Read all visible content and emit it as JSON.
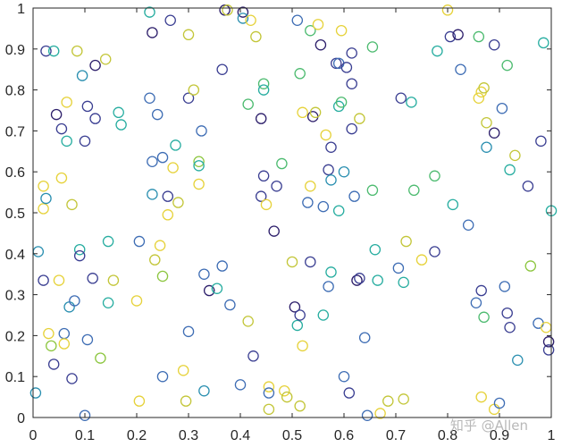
{
  "watermark": "知乎 @Allen",
  "chart_data": {
    "type": "scatter",
    "marker": "open-circle",
    "grid": false,
    "legend": "none",
    "colormap": "viridis",
    "xlim": [
      0,
      1
    ],
    "ylim": [
      0,
      1
    ],
    "x_ticks": [
      0,
      0.1,
      0.2,
      0.3,
      0.4,
      0.5,
      0.6,
      0.7,
      0.8,
      0.9,
      1
    ],
    "x_tick_labels": [
      "0",
      "0.1",
      "0.2",
      "0.3",
      "0.4",
      "0.5",
      "0.6",
      "0.7",
      "0.8",
      "0.9",
      "1"
    ],
    "y_ticks": [
      0,
      0.1,
      0.2,
      0.3,
      0.4,
      0.5,
      0.6,
      0.7,
      0.8,
      0.9,
      1
    ],
    "y_tick_labels": [
      "0",
      "0.1",
      "0.2",
      "0.3",
      "0.4",
      "0.5",
      "0.6",
      "0.7",
      "0.8",
      "0.9",
      "1"
    ],
    "colors": {
      "dark_purple": "#2d1f6b",
      "indigo": "#3b3f92",
      "blue": "#3e6db4",
      "teal": "#2a8fb0",
      "cyan": "#27ada0",
      "green": "#4dbb70",
      "lime": "#8cc63f",
      "yellow_green": "#c3c639",
      "yellow": "#e6d23a"
    },
    "points": [
      {
        "x": 0.005,
        "y": 0.06,
        "c": "teal"
      },
      {
        "x": 0.01,
        "y": 0.405,
        "c": "teal"
      },
      {
        "x": 0.02,
        "y": 0.51,
        "c": "yellow"
      },
      {
        "x": 0.02,
        "y": 0.565,
        "c": "yellow"
      },
      {
        "x": 0.02,
        "y": 0.335,
        "c": "indigo"
      },
      {
        "x": 0.025,
        "y": 0.895,
        "c": "indigo"
      },
      {
        "x": 0.025,
        "y": 0.535,
        "c": "teal"
      },
      {
        "x": 0.03,
        "y": 0.205,
        "c": "yellow"
      },
      {
        "x": 0.035,
        "y": 0.175,
        "c": "lime"
      },
      {
        "x": 0.04,
        "y": 0.13,
        "c": "indigo"
      },
      {
        "x": 0.04,
        "y": 0.895,
        "c": "cyan"
      },
      {
        "x": 0.045,
        "y": 0.74,
        "c": "dark_purple"
      },
      {
        "x": 0.05,
        "y": 0.335,
        "c": "yellow"
      },
      {
        "x": 0.055,
        "y": 0.585,
        "c": "yellow"
      },
      {
        "x": 0.055,
        "y": 0.705,
        "c": "indigo"
      },
      {
        "x": 0.06,
        "y": 0.205,
        "c": "blue"
      },
      {
        "x": 0.06,
        "y": 0.18,
        "c": "yellow"
      },
      {
        "x": 0.065,
        "y": 0.675,
        "c": "cyan"
      },
      {
        "x": 0.065,
        "y": 0.77,
        "c": "yellow"
      },
      {
        "x": 0.07,
        "y": 0.27,
        "c": "teal"
      },
      {
        "x": 0.075,
        "y": 0.52,
        "c": "yellow_green"
      },
      {
        "x": 0.075,
        "y": 0.095,
        "c": "indigo"
      },
      {
        "x": 0.08,
        "y": 0.285,
        "c": "blue"
      },
      {
        "x": 0.085,
        "y": 0.895,
        "c": "yellow_green"
      },
      {
        "x": 0.09,
        "y": 0.41,
        "c": "cyan"
      },
      {
        "x": 0.09,
        "y": 0.395,
        "c": "indigo"
      },
      {
        "x": 0.095,
        "y": 0.835,
        "c": "teal"
      },
      {
        "x": 0.1,
        "y": 0.675,
        "c": "indigo"
      },
      {
        "x": 0.1,
        "y": 0.005,
        "c": "blue"
      },
      {
        "x": 0.105,
        "y": 0.76,
        "c": "indigo"
      },
      {
        "x": 0.105,
        "y": 0.19,
        "c": "blue"
      },
      {
        "x": 0.115,
        "y": 0.34,
        "c": "indigo"
      },
      {
        "x": 0.12,
        "y": 0.86,
        "c": "dark_purple"
      },
      {
        "x": 0.12,
        "y": 0.73,
        "c": "indigo"
      },
      {
        "x": 0.13,
        "y": 0.145,
        "c": "lime"
      },
      {
        "x": 0.14,
        "y": 0.875,
        "c": "yellow_green"
      },
      {
        "x": 0.145,
        "y": 0.28,
        "c": "cyan"
      },
      {
        "x": 0.145,
        "y": 0.43,
        "c": "cyan"
      },
      {
        "x": 0.155,
        "y": 0.335,
        "c": "yellow_green"
      },
      {
        "x": 0.165,
        "y": 0.745,
        "c": "cyan"
      },
      {
        "x": 0.17,
        "y": 0.715,
        "c": "cyan"
      },
      {
        "x": 0.2,
        "y": 0.285,
        "c": "yellow"
      },
      {
        "x": 0.205,
        "y": 0.43,
        "c": "blue"
      },
      {
        "x": 0.205,
        "y": 0.04,
        "c": "yellow"
      },
      {
        "x": 0.225,
        "y": 0.99,
        "c": "cyan"
      },
      {
        "x": 0.225,
        "y": 0.78,
        "c": "blue"
      },
      {
        "x": 0.23,
        "y": 0.545,
        "c": "teal"
      },
      {
        "x": 0.23,
        "y": 0.625,
        "c": "blue"
      },
      {
        "x": 0.23,
        "y": 0.94,
        "c": "dark_purple"
      },
      {
        "x": 0.235,
        "y": 0.385,
        "c": "yellow_green"
      },
      {
        "x": 0.24,
        "y": 0.74,
        "c": "blue"
      },
      {
        "x": 0.245,
        "y": 0.42,
        "c": "yellow"
      },
      {
        "x": 0.25,
        "y": 0.345,
        "c": "lime"
      },
      {
        "x": 0.25,
        "y": 0.635,
        "c": "blue"
      },
      {
        "x": 0.25,
        "y": 0.1,
        "c": "blue"
      },
      {
        "x": 0.26,
        "y": 0.54,
        "c": "indigo"
      },
      {
        "x": 0.26,
        "y": 0.495,
        "c": "yellow"
      },
      {
        "x": 0.265,
        "y": 0.97,
        "c": "indigo"
      },
      {
        "x": 0.27,
        "y": 0.61,
        "c": "yellow"
      },
      {
        "x": 0.275,
        "y": 0.665,
        "c": "cyan"
      },
      {
        "x": 0.28,
        "y": 0.525,
        "c": "yellow_green"
      },
      {
        "x": 0.29,
        "y": 0.115,
        "c": "yellow"
      },
      {
        "x": 0.295,
        "y": 0.04,
        "c": "yellow_green"
      },
      {
        "x": 0.3,
        "y": 0.935,
        "c": "yellow_green"
      },
      {
        "x": 0.3,
        "y": 0.21,
        "c": "blue"
      },
      {
        "x": 0.3,
        "y": 0.78,
        "c": "indigo"
      },
      {
        "x": 0.31,
        "y": 0.8,
        "c": "yellow_green"
      },
      {
        "x": 0.32,
        "y": 0.625,
        "c": "lime"
      },
      {
        "x": 0.32,
        "y": 0.615,
        "c": "cyan"
      },
      {
        "x": 0.32,
        "y": 0.57,
        "c": "yellow"
      },
      {
        "x": 0.325,
        "y": 0.7,
        "c": "blue"
      },
      {
        "x": 0.33,
        "y": 0.065,
        "c": "teal"
      },
      {
        "x": 0.33,
        "y": 0.35,
        "c": "blue"
      },
      {
        "x": 0.34,
        "y": 0.31,
        "c": "dark_purple"
      },
      {
        "x": 0.355,
        "y": 0.315,
        "c": "cyan"
      },
      {
        "x": 0.365,
        "y": 0.85,
        "c": "indigo"
      },
      {
        "x": 0.365,
        "y": 0.37,
        "c": "blue"
      },
      {
        "x": 0.37,
        "y": 0.995,
        "c": "dark_purple"
      },
      {
        "x": 0.375,
        "y": 0.995,
        "c": "yellow_green"
      },
      {
        "x": 0.38,
        "y": 0.275,
        "c": "blue"
      },
      {
        "x": 0.4,
        "y": 0.08,
        "c": "blue"
      },
      {
        "x": 0.405,
        "y": 0.99,
        "c": "dark_purple"
      },
      {
        "x": 0.405,
        "y": 0.975,
        "c": "teal"
      },
      {
        "x": 0.415,
        "y": 0.765,
        "c": "green"
      },
      {
        "x": 0.415,
        "y": 0.235,
        "c": "yellow_green"
      },
      {
        "x": 0.42,
        "y": 0.97,
        "c": "yellow"
      },
      {
        "x": 0.425,
        "y": 0.15,
        "c": "indigo"
      },
      {
        "x": 0.43,
        "y": 0.93,
        "c": "yellow_green"
      },
      {
        "x": 0.44,
        "y": 0.73,
        "c": "dark_purple"
      },
      {
        "x": 0.44,
        "y": 0.54,
        "c": "indigo"
      },
      {
        "x": 0.445,
        "y": 0.815,
        "c": "green"
      },
      {
        "x": 0.445,
        "y": 0.8,
        "c": "cyan"
      },
      {
        "x": 0.445,
        "y": 0.59,
        "c": "indigo"
      },
      {
        "x": 0.45,
        "y": 0.52,
        "c": "yellow"
      },
      {
        "x": 0.455,
        "y": 0.075,
        "c": "yellow"
      },
      {
        "x": 0.455,
        "y": 0.06,
        "c": "blue"
      },
      {
        "x": 0.455,
        "y": 0.02,
        "c": "yellow_green"
      },
      {
        "x": 0.465,
        "y": 0.455,
        "c": "dark_purple"
      },
      {
        "x": 0.47,
        "y": 0.565,
        "c": "indigo"
      },
      {
        "x": 0.48,
        "y": 0.62,
        "c": "green"
      },
      {
        "x": 0.485,
        "y": 0.065,
        "c": "yellow"
      },
      {
        "x": 0.49,
        "y": 0.05,
        "c": "yellow_green"
      },
      {
        "x": 0.5,
        "y": 0.38,
        "c": "yellow_green"
      },
      {
        "x": 0.505,
        "y": 0.27,
        "c": "dark_purple"
      },
      {
        "x": 0.51,
        "y": 0.225,
        "c": "cyan"
      },
      {
        "x": 0.51,
        "y": 0.97,
        "c": "blue"
      },
      {
        "x": 0.515,
        "y": 0.25,
        "c": "indigo"
      },
      {
        "x": 0.515,
        "y": 0.84,
        "c": "green"
      },
      {
        "x": 0.515,
        "y": 0.028,
        "c": "yellow_green"
      },
      {
        "x": 0.52,
        "y": 0.745,
        "c": "yellow"
      },
      {
        "x": 0.52,
        "y": 0.175,
        "c": "yellow"
      },
      {
        "x": 0.53,
        "y": 0.525,
        "c": "blue"
      },
      {
        "x": 0.535,
        "y": 0.38,
        "c": "indigo"
      },
      {
        "x": 0.535,
        "y": 0.565,
        "c": "yellow"
      },
      {
        "x": 0.535,
        "y": 0.945,
        "c": "green"
      },
      {
        "x": 0.54,
        "y": 0.735,
        "c": "dark_purple"
      },
      {
        "x": 0.545,
        "y": 0.745,
        "c": "yellow_green"
      },
      {
        "x": 0.55,
        "y": 0.96,
        "c": "yellow"
      },
      {
        "x": 0.555,
        "y": 0.91,
        "c": "dark_purple"
      },
      {
        "x": 0.56,
        "y": 0.515,
        "c": "blue"
      },
      {
        "x": 0.56,
        "y": 0.25,
        "c": "cyan"
      },
      {
        "x": 0.565,
        "y": 0.69,
        "c": "yellow"
      },
      {
        "x": 0.57,
        "y": 0.605,
        "c": "indigo"
      },
      {
        "x": 0.57,
        "y": 0.32,
        "c": "blue"
      },
      {
        "x": 0.575,
        "y": 0.66,
        "c": "indigo"
      },
      {
        "x": 0.575,
        "y": 0.58,
        "c": "teal"
      },
      {
        "x": 0.575,
        "y": 0.355,
        "c": "cyan"
      },
      {
        "x": 0.585,
        "y": 0.865,
        "c": "indigo"
      },
      {
        "x": 0.59,
        "y": 0.865,
        "c": "blue"
      },
      {
        "x": 0.59,
        "y": 0.76,
        "c": "cyan"
      },
      {
        "x": 0.59,
        "y": 0.505,
        "c": "cyan"
      },
      {
        "x": 0.595,
        "y": 0.945,
        "c": "yellow"
      },
      {
        "x": 0.595,
        "y": 0.77,
        "c": "green"
      },
      {
        "x": 0.6,
        "y": 0.6,
        "c": "teal"
      },
      {
        "x": 0.6,
        "y": 0.1,
        "c": "blue"
      },
      {
        "x": 0.605,
        "y": 0.855,
        "c": "indigo"
      },
      {
        "x": 0.61,
        "y": 0.06,
        "c": "indigo"
      },
      {
        "x": 0.615,
        "y": 0.89,
        "c": "indigo"
      },
      {
        "x": 0.615,
        "y": 0.815,
        "c": "indigo"
      },
      {
        "x": 0.615,
        "y": 0.705,
        "c": "indigo"
      },
      {
        "x": 0.62,
        "y": 0.54,
        "c": "blue"
      },
      {
        "x": 0.625,
        "y": 0.335,
        "c": "dark_purple"
      },
      {
        "x": 0.63,
        "y": 0.34,
        "c": "indigo"
      },
      {
        "x": 0.63,
        "y": 0.73,
        "c": "yellow_green"
      },
      {
        "x": 0.64,
        "y": 0.195,
        "c": "blue"
      },
      {
        "x": 0.645,
        "y": 0.005,
        "c": "blue"
      },
      {
        "x": 0.655,
        "y": 0.555,
        "c": "green"
      },
      {
        "x": 0.655,
        "y": 0.905,
        "c": "green"
      },
      {
        "x": 0.66,
        "y": 0.41,
        "c": "cyan"
      },
      {
        "x": 0.665,
        "y": 0.335,
        "c": "cyan"
      },
      {
        "x": 0.67,
        "y": 0.01,
        "c": "yellow"
      },
      {
        "x": 0.685,
        "y": 0.04,
        "c": "yellow_green"
      },
      {
        "x": 0.705,
        "y": 0.365,
        "c": "blue"
      },
      {
        "x": 0.71,
        "y": 0.78,
        "c": "indigo"
      },
      {
        "x": 0.715,
        "y": 0.045,
        "c": "yellow_green"
      },
      {
        "x": 0.715,
        "y": 0.33,
        "c": "cyan"
      },
      {
        "x": 0.72,
        "y": 0.43,
        "c": "yellow_green"
      },
      {
        "x": 0.73,
        "y": 0.77,
        "c": "cyan"
      },
      {
        "x": 0.735,
        "y": 0.555,
        "c": "green"
      },
      {
        "x": 0.75,
        "y": 0.385,
        "c": "yellow"
      },
      {
        "x": 0.775,
        "y": 0.405,
        "c": "indigo"
      },
      {
        "x": 0.775,
        "y": 0.59,
        "c": "green"
      },
      {
        "x": 0.78,
        "y": 0.895,
        "c": "cyan"
      },
      {
        "x": 0.8,
        "y": 0.995,
        "c": "yellow"
      },
      {
        "x": 0.805,
        "y": 0.93,
        "c": "indigo"
      },
      {
        "x": 0.81,
        "y": 0.52,
        "c": "cyan"
      },
      {
        "x": 0.82,
        "y": 0.935,
        "c": "dark_purple"
      },
      {
        "x": 0.825,
        "y": 0.85,
        "c": "blue"
      },
      {
        "x": 0.84,
        "y": 0.47,
        "c": "blue"
      },
      {
        "x": 0.855,
        "y": 0.28,
        "c": "blue"
      },
      {
        "x": 0.86,
        "y": 0.78,
        "c": "yellow"
      },
      {
        "x": 0.86,
        "y": 0.93,
        "c": "green"
      },
      {
        "x": 0.865,
        "y": 0.31,
        "c": "indigo"
      },
      {
        "x": 0.865,
        "y": 0.795,
        "c": "yellow"
      },
      {
        "x": 0.865,
        "y": 0.05,
        "c": "yellow"
      },
      {
        "x": 0.87,
        "y": 0.245,
        "c": "green"
      },
      {
        "x": 0.87,
        "y": 0.805,
        "c": "yellow_green"
      },
      {
        "x": 0.875,
        "y": 0.66,
        "c": "teal"
      },
      {
        "x": 0.875,
        "y": 0.72,
        "c": "yellow_green"
      },
      {
        "x": 0.89,
        "y": 0.695,
        "c": "dark_purple"
      },
      {
        "x": 0.89,
        "y": 0.91,
        "c": "indigo"
      },
      {
        "x": 0.89,
        "y": 0.02,
        "c": "yellow"
      },
      {
        "x": 0.9,
        "y": 0.035,
        "c": "blue"
      },
      {
        "x": 0.905,
        "y": 0.755,
        "c": "blue"
      },
      {
        "x": 0.91,
        "y": 0.32,
        "c": "blue"
      },
      {
        "x": 0.915,
        "y": 0.86,
        "c": "green"
      },
      {
        "x": 0.915,
        "y": 0.255,
        "c": "indigo"
      },
      {
        "x": 0.92,
        "y": 0.605,
        "c": "cyan"
      },
      {
        "x": 0.92,
        "y": 0.22,
        "c": "indigo"
      },
      {
        "x": 0.93,
        "y": 0.64,
        "c": "yellow_green"
      },
      {
        "x": 0.935,
        "y": 0.14,
        "c": "teal"
      },
      {
        "x": 0.955,
        "y": 0.565,
        "c": "indigo"
      },
      {
        "x": 0.96,
        "y": 0.37,
        "c": "lime"
      },
      {
        "x": 0.975,
        "y": 0.23,
        "c": "blue"
      },
      {
        "x": 0.98,
        "y": 0.675,
        "c": "indigo"
      },
      {
        "x": 0.985,
        "y": 0.915,
        "c": "cyan"
      },
      {
        "x": 0.99,
        "y": 0.22,
        "c": "yellow"
      },
      {
        "x": 0.995,
        "y": 0.165,
        "c": "indigo"
      },
      {
        "x": 0.995,
        "y": 0.185,
        "c": "dark_purple"
      },
      {
        "x": 1.0,
        "y": 0.505,
        "c": "cyan"
      }
    ]
  }
}
